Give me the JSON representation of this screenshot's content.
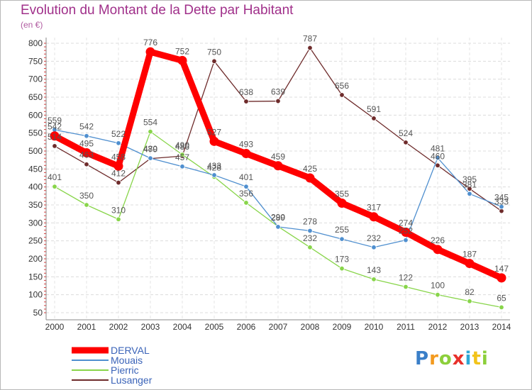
{
  "chart_data": {
    "type": "line",
    "title": "Evolution du Montant de la Dette par Habitant",
    "subtitle": "(en €)",
    "xlabel": "",
    "ylabel": "",
    "categories": [
      "2000",
      "2001",
      "2002",
      "2003",
      "2004",
      "2005",
      "2006",
      "2007",
      "2008",
      "2009",
      "2010",
      "2011",
      "2012",
      "2013",
      "2014"
    ],
    "ylim": [
      50,
      800
    ],
    "yticks": [
      50,
      100,
      150,
      200,
      250,
      300,
      350,
      400,
      450,
      500,
      550,
      600,
      650,
      700,
      750,
      800
    ],
    "grid": true,
    "legend_position": "bottom-left",
    "series": [
      {
        "name": "DERVAL",
        "color": "#ff0000",
        "values": [
          542,
          495,
          458,
          776,
          752,
          527,
          493,
          459,
          425,
          355,
          317,
          274,
          226,
          187,
          147
        ]
      },
      {
        "name": "Mouais",
        "color": "#4f8fcf",
        "values": [
          559,
          542,
          522,
          480,
          457,
          433,
          401,
          289,
          278,
          255,
          232,
          252,
          481,
          381,
          345
        ]
      },
      {
        "name": "Pierric",
        "color": "#88d54a",
        "values": [
          401,
          350,
          310,
          554,
          490,
          428,
          356,
          290,
          232,
          173,
          143,
          122,
          100,
          82,
          65
        ]
      },
      {
        "name": "Lusanger",
        "color": "#6e2b2b",
        "values": [
          514,
          463,
          412,
          479,
          486,
          750,
          638,
          639,
          787,
          656,
          591,
          524,
          460,
          395,
          333
        ]
      }
    ]
  },
  "logo": {
    "text": "Proxiti"
  }
}
